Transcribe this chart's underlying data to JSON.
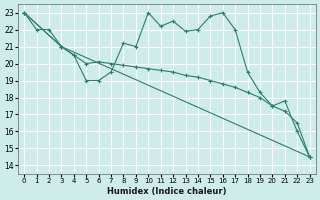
{
  "xlabel": "Humidex (Indice chaleur)",
  "background_color": "#ceecea",
  "grid_color": "#ffffff",
  "line_color": "#2e7d6e",
  "xlim": [
    -0.5,
    23.5
  ],
  "ylim": [
    13.5,
    23.5
  ],
  "yticks": [
    14,
    15,
    16,
    17,
    18,
    19,
    20,
    21,
    22,
    23
  ],
  "xticks": [
    0,
    1,
    2,
    3,
    4,
    5,
    6,
    7,
    8,
    9,
    10,
    11,
    12,
    13,
    14,
    15,
    16,
    17,
    18,
    19,
    20,
    21,
    22,
    23
  ],
  "series": [
    {
      "x": [
        0,
        1,
        2,
        3,
        4,
        5,
        6,
        7,
        8,
        9,
        10,
        11,
        12,
        13,
        14,
        15,
        16,
        17,
        18,
        19,
        20,
        21,
        22,
        23
      ],
      "y": [
        23,
        22,
        22,
        21,
        20.5,
        19,
        19,
        19.5,
        21.2,
        21,
        23,
        22.2,
        22.5,
        21.9,
        22,
        22.8,
        23,
        22,
        19.5,
        18.3,
        17.5,
        17.8,
        16,
        14.5
      ]
    },
    {
      "x": [
        0,
        3,
        4,
        5,
        6,
        7,
        8,
        9,
        10,
        11,
        12,
        13,
        14,
        15,
        16,
        17,
        18,
        19,
        20,
        21,
        22,
        23
      ],
      "y": [
        23,
        21,
        20.5,
        20,
        20.1,
        20.0,
        19.9,
        19.8,
        19.7,
        19.6,
        19.5,
        19.3,
        19.2,
        19.0,
        18.8,
        18.6,
        18.3,
        18.0,
        17.5,
        17.2,
        16.5,
        14.5
      ]
    },
    {
      "x": [
        0,
        3,
        23
      ],
      "y": [
        23,
        21,
        14.5
      ]
    }
  ]
}
